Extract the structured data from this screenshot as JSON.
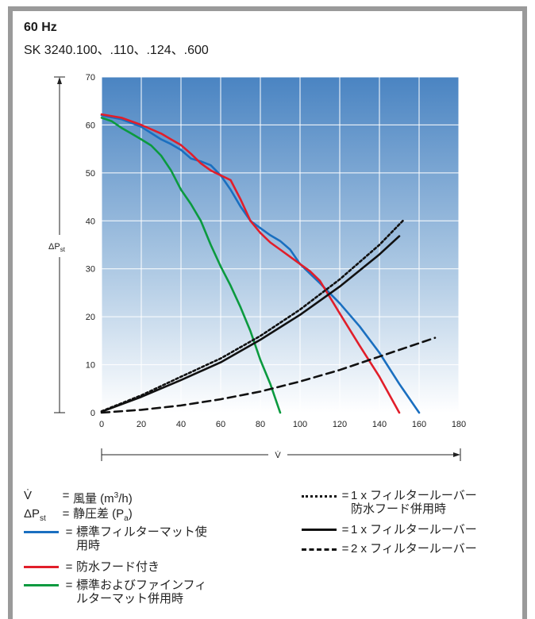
{
  "header": {
    "title": "60 Hz",
    "subtitle": "SK 3240.100、.110、.124、.600"
  },
  "chart_data": {
    "type": "line",
    "xlim": [
      0,
      180
    ],
    "ylim": [
      0,
      70
    ],
    "x_ticks": [
      "0",
      "20",
      "40",
      "60",
      "80",
      "100",
      "120",
      "140",
      "160",
      "180"
    ],
    "y_ticks": [
      "0",
      "10",
      "20",
      "30",
      "40",
      "50",
      "60",
      "70"
    ],
    "ylabel": "ΔP",
    "ylabel_sub": "st",
    "xlabel": "V̇",
    "grid": true,
    "series": [
      {
        "name": "標準フィルターマット使用時",
        "color": "#1a6fc0",
        "style": "solid",
        "x": [
          0,
          10,
          20,
          30,
          35,
          40,
          45,
          50,
          55,
          60,
          65,
          70,
          75,
          80,
          85,
          90,
          95,
          100,
          105,
          110,
          120,
          130,
          140,
          150,
          160
        ],
        "y": [
          62,
          61.2,
          59.6,
          57,
          56,
          54.8,
          53,
          52.4,
          51.6,
          49.5,
          46.5,
          43,
          40,
          38.5,
          37,
          35.8,
          34,
          31,
          29,
          27,
          22.8,
          18,
          12.5,
          6,
          0
        ]
      },
      {
        "name": "防水フード付き",
        "color": "#e11e2a",
        "style": "solid",
        "x": [
          0,
          10,
          20,
          30,
          35,
          40,
          45,
          50,
          55,
          60,
          65,
          70,
          75,
          80,
          85,
          90,
          95,
          100,
          105,
          110,
          120,
          130,
          140,
          150
        ],
        "y": [
          62.2,
          61.5,
          60,
          58.2,
          57,
          55.8,
          54,
          52,
          50.5,
          49.5,
          48.5,
          44.5,
          40,
          37.5,
          35.5,
          34,
          32.5,
          31,
          29.5,
          27.5,
          20.7,
          14,
          7.5,
          0
        ]
      },
      {
        "name": "標準およびファインフィルターマット併用時",
        "color": "#0b9a3f",
        "style": "solid",
        "x": [
          0,
          5,
          10,
          15,
          20,
          25,
          30,
          35,
          40,
          45,
          50,
          55,
          60,
          65,
          70,
          75,
          80,
          85,
          90
        ],
        "y": [
          61.5,
          60.8,
          59.4,
          58.2,
          57,
          55.7,
          53.6,
          50.5,
          46.5,
          43.5,
          40,
          35,
          30.5,
          26.5,
          22,
          17,
          11,
          6,
          0
        ]
      },
      {
        "name": "1 x フィルタールーバー防水フード併用時",
        "color": "#111",
        "style": "dotted",
        "x": [
          0,
          20,
          40,
          60,
          80,
          100,
          120,
          140,
          152
        ],
        "y": [
          0.3,
          3.6,
          7.5,
          11.3,
          16,
          21.5,
          27.8,
          35,
          40.1
        ]
      },
      {
        "name": "1 x フィルタールーバー",
        "color": "#111",
        "style": "solid",
        "x": [
          0,
          20,
          40,
          60,
          80,
          100,
          120,
          140,
          150
        ],
        "y": [
          0.2,
          3.3,
          6.8,
          10.5,
          15.2,
          20.4,
          26.3,
          33,
          36.8
        ]
      },
      {
        "name": "2 x フィルタールーバー",
        "color": "#111",
        "style": "dashed",
        "x": [
          0,
          20,
          40,
          60,
          80,
          100,
          120,
          140,
          168
        ],
        "y": [
          0,
          0.6,
          1.5,
          2.8,
          4.4,
          6.5,
          8.9,
          11.7,
          15.6
        ]
      }
    ]
  },
  "legend": {
    "vdot_symbol": "V̇",
    "vdot_text_pre": "風量 (m",
    "vdot_sup": "3",
    "vdot_text_post": "/h)",
    "dp_symbol": "ΔP",
    "dp_sub": "st",
    "dp_text_pre": "静圧差 (P",
    "dp_text_sub": "a",
    "dp_text_post": ")",
    "eq": "=",
    "line1": "標準フィルターマット使",
    "line1b": "用時",
    "line2": "防水フード付き",
    "line3": "標準およびファインフィ",
    "line3b": "ルターマット併用時",
    "line4": "1 x フィルタールーバー",
    "line4b": "防水フード併用時",
    "line5": "1 x フィルタールーバー",
    "line6": "2 x フィルタールーバー"
  }
}
